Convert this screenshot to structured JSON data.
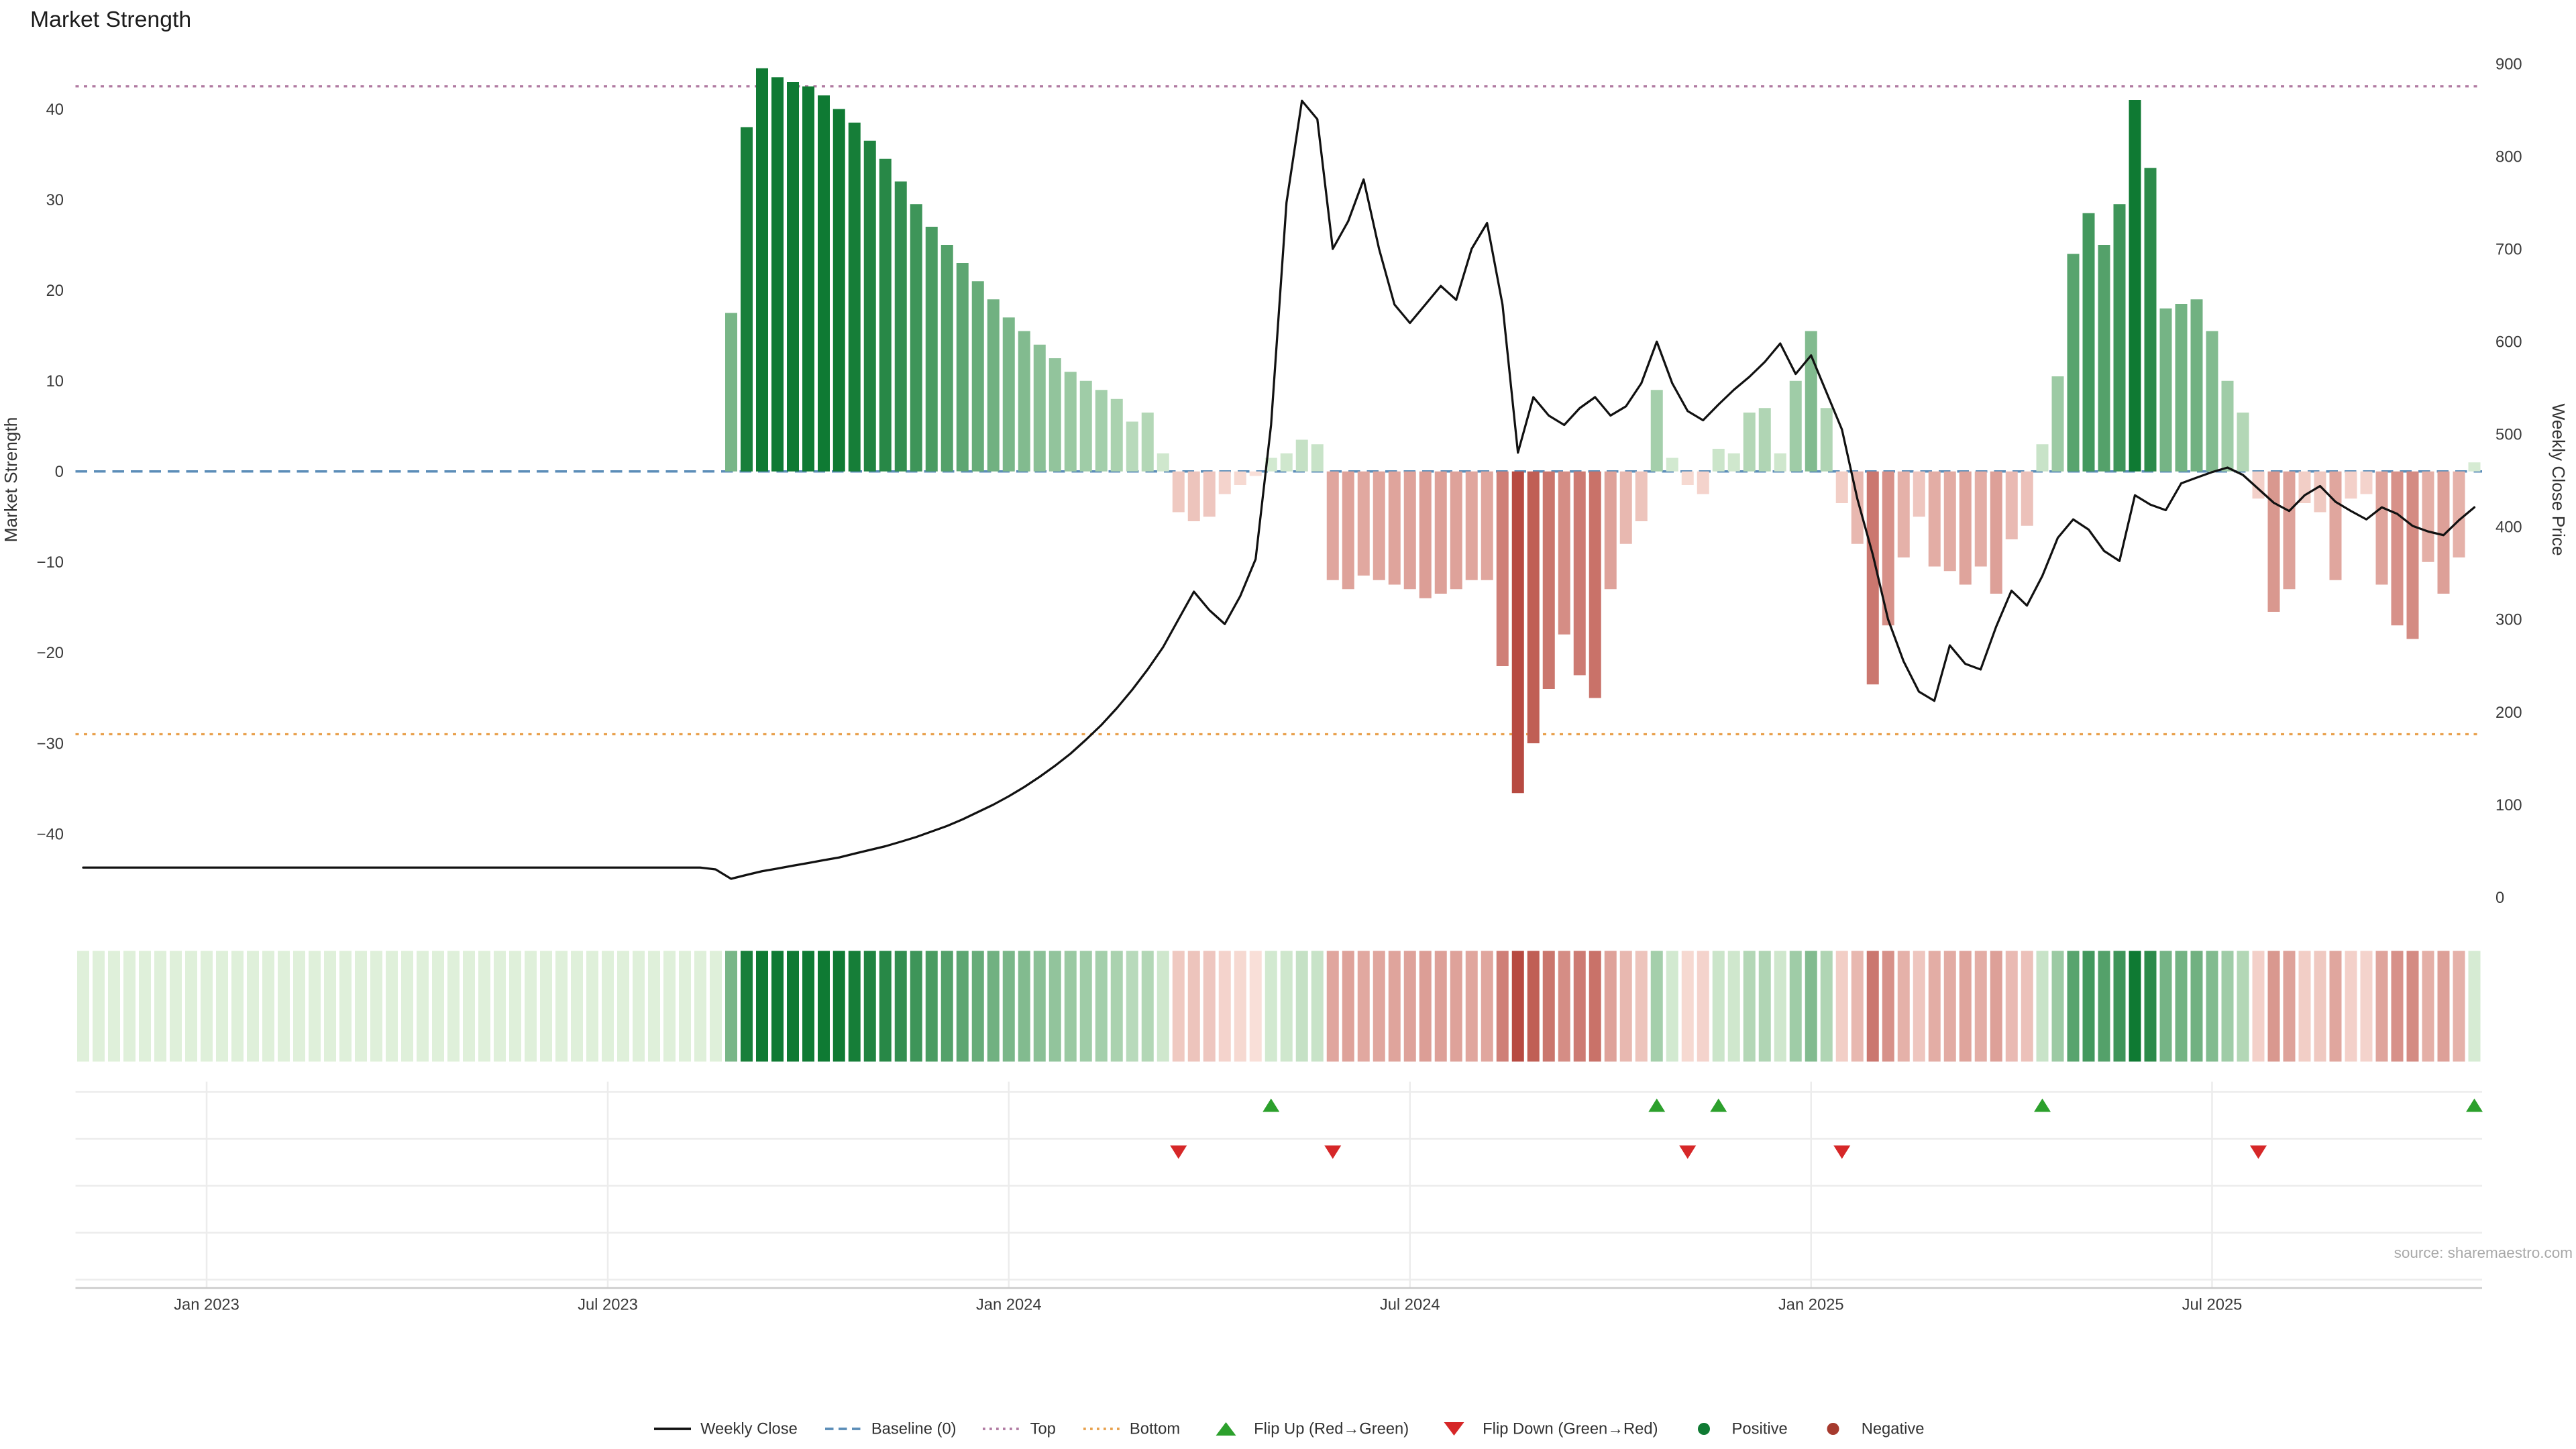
{
  "title": "Market Strength",
  "source": "source: sharemaestro.com",
  "colors": {
    "line": "#111111",
    "baseline": "#5b8db8",
    "top": "#b07aa1",
    "bottom": "#e8a04c",
    "flip_up": "#2ca02c",
    "flip_down": "#d62728",
    "pos_light": "#dff0da",
    "pos_dark": "#0f7a33",
    "neg_light": "#fbe3dc",
    "neg_dark": "#b03a30",
    "grid": "#ececec",
    "spine": "#c9c9c9"
  },
  "chart_data": {
    "type": "bar+line",
    "title": "Market Strength",
    "x_axis": {
      "unit": "week",
      "n_points": 156,
      "tick_labels": [
        "Jan 2023",
        "Jul 2023",
        "Jan 2024",
        "Jul 2024",
        "Jan 2025",
        "Jul 2025"
      ],
      "tick_week_indices": [
        8,
        34,
        60,
        86,
        112,
        138
      ]
    },
    "left_axis": {
      "label": "Market Strength",
      "ticks": [
        -40,
        -30,
        -20,
        -10,
        0,
        10,
        20,
        30,
        40
      ],
      "range": [
        -47,
        45
      ]
    },
    "right_axis": {
      "label": "Weekly Close Price",
      "ticks": [
        0,
        100,
        200,
        300,
        400,
        500,
        600,
        700,
        800,
        900
      ],
      "range": [
        0,
        900
      ]
    },
    "reference_lines": {
      "baseline": 0,
      "top": 42.5,
      "bottom": -29
    },
    "flip_up_weeks": [
      77,
      102,
      106,
      127,
      155
    ],
    "flip_down_weeks": [
      71,
      81,
      104,
      114,
      141
    ],
    "series": [
      {
        "name": "Market Strength",
        "type": "bar",
        "axis": "left",
        "values": [
          0,
          0,
          0,
          0,
          0,
          0,
          0,
          0,
          0,
          0,
          0,
          0,
          0,
          0,
          0,
          0,
          0,
          0,
          0,
          0,
          0,
          0,
          0,
          0,
          0,
          0,
          0,
          0,
          0,
          0,
          0,
          0,
          0,
          0,
          0,
          0,
          0,
          0,
          0,
          0,
          0,
          0,
          17.5,
          38,
          44.5,
          43.5,
          43,
          42.5,
          41.5,
          40,
          38.5,
          36.5,
          34.5,
          32,
          29.5,
          27,
          25,
          23,
          21,
          19,
          17,
          15.5,
          14,
          12.5,
          11,
          10,
          9,
          8,
          5.5,
          6.5,
          2,
          -4.5,
          -5.5,
          -5,
          -2.5,
          -1.5,
          -0.5,
          1.5,
          2,
          3.5,
          3,
          -12,
          -13,
          -11.5,
          -12,
          -12.5,
          -13,
          -14,
          -13.5,
          -13,
          -12,
          -12,
          -21.5,
          -35.5,
          -30,
          -24,
          -18,
          -22.5,
          -25,
          -13,
          -8,
          -5.5,
          9,
          1.5,
          -1.5,
          -2.5,
          2.5,
          2,
          6.5,
          7,
          2,
          10,
          15.5,
          7,
          -3.5,
          -8,
          -23.5,
          -17,
          -9.5,
          -5,
          -10.5,
          -11,
          -12.5,
          -10.5,
          -13.5,
          -7.5,
          -6,
          3,
          10.5,
          24,
          28.5,
          25,
          29.5,
          41,
          33.5,
          18,
          18.5,
          19,
          15.5,
          10,
          6.5,
          -3,
          -15.5,
          -13,
          -3.5,
          -4.5,
          -12,
          -3,
          -2.5,
          -12.5,
          -17,
          -18.5,
          -10,
          -13.5,
          -9.5,
          1
        ]
      },
      {
        "name": "Weekly Close",
        "type": "line",
        "axis": "right",
        "values": [
          32,
          32,
          32,
          32,
          32,
          32,
          32,
          32,
          32,
          32,
          32,
          32,
          32,
          32,
          32,
          32,
          32,
          32,
          32,
          32,
          32,
          32,
          32,
          32,
          32,
          32,
          32,
          32,
          32,
          32,
          32,
          32,
          32,
          32,
          32,
          32,
          32,
          32,
          32,
          32,
          32,
          30,
          20,
          24,
          28,
          31,
          34,
          37,
          40,
          43,
          47,
          51,
          55,
          60,
          65,
          71,
          77,
          84,
          92,
          100,
          109,
          119,
          130,
          142,
          155,
          170,
          186,
          204,
          224,
          246,
          270,
          300,
          330,
          310,
          295,
          325,
          365,
          510,
          750,
          860,
          840,
          700,
          730,
          775,
          700,
          640,
          620,
          640,
          660,
          645,
          700,
          728,
          640,
          480,
          540,
          520,
          510,
          528,
          540,
          520,
          530,
          555,
          600,
          555,
          525,
          515,
          532,
          548,
          562,
          578,
          598,
          565,
          585,
          545,
          505,
          430,
          370,
          300,
          255,
          222,
          212,
          272,
          252,
          246,
          292,
          331,
          315,
          347,
          388,
          408,
          397,
          374,
          363,
          434,
          424,
          418,
          447,
          453,
          459,
          464,
          456,
          441,
          426,
          417,
          434,
          444,
          427,
          417,
          408,
          421,
          414,
          401,
          395,
          391,
          407,
          421
        ]
      }
    ]
  },
  "legend": [
    {
      "label": "Weekly Close",
      "swatch": "line",
      "color": "#111111"
    },
    {
      "label": "Baseline (0)",
      "swatch": "dashed-line",
      "color": "#5b8db8"
    },
    {
      "label": "Top",
      "swatch": "dotted-line",
      "color": "#b07aa1"
    },
    {
      "label": "Bottom",
      "swatch": "dotted-line",
      "color": "#e8a04c"
    },
    {
      "label": "Flip Up (Red→Green)",
      "swatch": "triangle-up",
      "color": "#2ca02c"
    },
    {
      "label": "Flip Down (Green→Red)",
      "swatch": "triangle-down",
      "color": "#d62728"
    },
    {
      "label": "Positive",
      "swatch": "dot",
      "color": "#0f7a33"
    },
    {
      "label": "Negative",
      "swatch": "dot",
      "color": "#a63a2e"
    }
  ]
}
